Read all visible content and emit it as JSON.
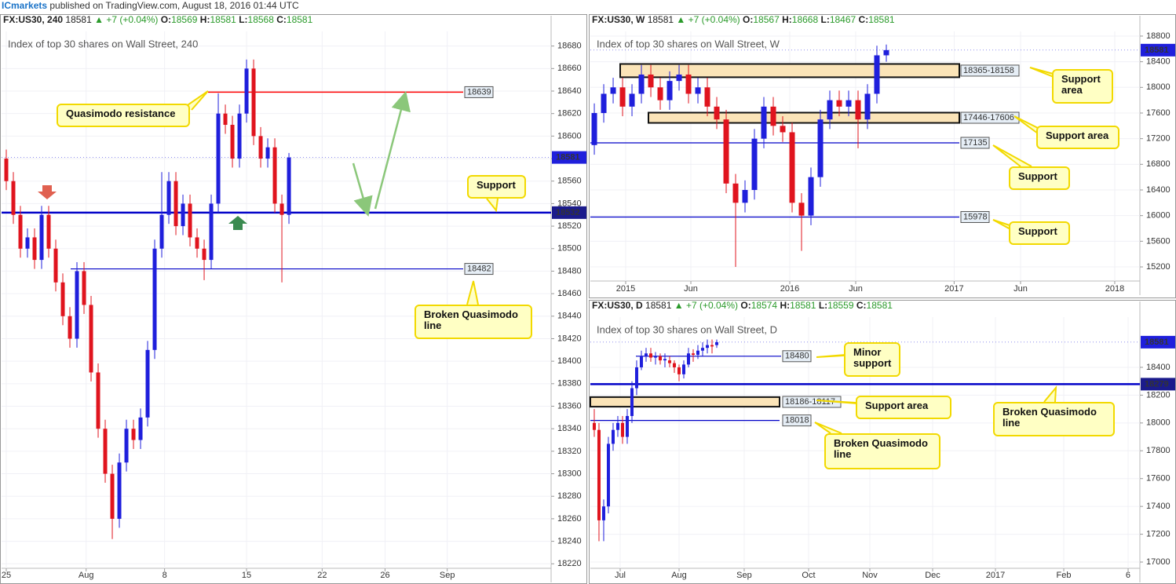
{
  "header": {
    "brand": "ICmarkets",
    "text": " published on TradingView.com, August 18, 2016 01:44 UTC"
  },
  "chart_data": [
    {
      "type": "candlestick",
      "symbol": "FX:US30, 240",
      "last": 18581,
      "change": "+7 (+0.04%)",
      "ohlc": [
        {
          "label": "O:",
          "value": 18569
        },
        {
          "label": "H:",
          "value": 18581
        },
        {
          "label": "L:",
          "value": 18568
        },
        {
          "label": "C:",
          "value": 18581
        }
      ],
      "title": "Index of top 30 shares on Wall Street, 240",
      "xlim": [
        -0.667,
        77.1
      ],
      "ylim": [
        18216,
        18693
      ],
      "xticks": [
        {
          "value": 0,
          "label": "25"
        },
        {
          "value": 11.3,
          "label": "Aug"
        },
        {
          "value": 22.4,
          "label": "8"
        },
        {
          "value": 34,
          "label": "15"
        },
        {
          "value": 44.7,
          "label": "22"
        },
        {
          "value": 53.6,
          "label": "26"
        },
        {
          "value": 62.4,
          "label": "Sep"
        }
      ],
      "yticks": [
        18220,
        18240,
        18260,
        18280,
        18300,
        18320,
        18340,
        18360,
        18380,
        18400,
        18420,
        18440,
        18460,
        18480,
        18500,
        18520,
        18540,
        18560,
        18580,
        18600,
        18620,
        18640,
        18660,
        18680
      ],
      "up_color": "#1f1fdc",
      "down_color": "#e0141e",
      "open": [
        18580,
        18560,
        18530,
        18500,
        18510,
        18490,
        18530,
        18500,
        18470,
        18440,
        18420,
        18480,
        18450,
        18390,
        18340,
        18300,
        18260,
        18310,
        18340,
        18330,
        18350,
        18410,
        18500,
        18530,
        18560,
        18520,
        18540,
        18510,
        18500,
        18490,
        18540,
        18620,
        18610,
        18580,
        18620,
        18660,
        18600,
        18580,
        18590,
        18540,
        18530
      ],
      "high": [
        18588,
        18568,
        18538,
        18518,
        18518,
        18538,
        18538,
        18508,
        18478,
        18448,
        18488,
        18488,
        18458,
        18398,
        18348,
        18308,
        18318,
        18348,
        18348,
        18358,
        18418,
        18508,
        18568,
        18568,
        18568,
        18548,
        18548,
        18518,
        18508,
        18548,
        18638,
        18628,
        18618,
        18628,
        18668,
        18668,
        18608,
        18598,
        18598,
        18548,
        18585
      ],
      "low": [
        18552,
        18522,
        18492,
        18492,
        18482,
        18482,
        18492,
        18462,
        18432,
        18412,
        18412,
        18442,
        18382,
        18332,
        18292,
        18242,
        18252,
        18302,
        18322,
        18322,
        18342,
        18402,
        18492,
        18522,
        18512,
        18512,
        18502,
        18492,
        18472,
        18482,
        18532,
        18602,
        18572,
        18572,
        18612,
        18592,
        18572,
        18572,
        18532,
        18470,
        18522
      ],
      "close": [
        18560,
        18530,
        18500,
        18510,
        18490,
        18530,
        18500,
        18470,
        18440,
        18420,
        18480,
        18450,
        18390,
        18340,
        18300,
        18260,
        18310,
        18340,
        18330,
        18350,
        18410,
        18500,
        18530,
        18560,
        18520,
        18540,
        18510,
        18500,
        18490,
        18540,
        18620,
        18610,
        18580,
        18620,
        18660,
        18600,
        18580,
        18590,
        18540,
        18530,
        18581
      ],
      "levels": [
        {
          "value": 18639,
          "color": "#ff0000"
        },
        {
          "value": 18532,
          "color": "#0000c8"
        },
        {
          "value": 18482,
          "color": "#0000c8"
        }
      ],
      "zones": [],
      "annotations": [
        "Quasimodo resistance",
        "Support",
        "Broken Quasimodo line"
      ]
    },
    {
      "type": "candlestick",
      "symbol": "FX:US30, W",
      "last": 18581,
      "change": "+7 (+0.04%)",
      "ohlc": [
        {
          "label": "O:",
          "value": 18567
        },
        {
          "label": "H:",
          "value": 18668
        },
        {
          "label": "L:",
          "value": 18467
        },
        {
          "label": "C:",
          "value": 18581
        }
      ],
      "title": "Index of top 30 shares on Wall Street, W",
      "xlim": [
        -0.42,
        57.92
      ],
      "ylim": [
        14980,
        18873
      ],
      "xticks": [
        {
          "value": 3.33,
          "label": "2015"
        },
        {
          "value": 10.25,
          "label": "Jun"
        },
        {
          "value": 20.75,
          "label": "2016"
        },
        {
          "value": 27.75,
          "label": "Jun"
        },
        {
          "value": 38.2,
          "label": "2017"
        },
        {
          "value": 45.25,
          "label": "Jun"
        },
        {
          "value": 55.25,
          "label": "2018"
        }
      ],
      "yticks": [
        15200,
        15600,
        16000,
        16400,
        16800,
        17200,
        17600,
        18000,
        18400,
        18800
      ],
      "up_color": "#1f1fdc",
      "down_color": "#e0141e",
      "open": [
        17100,
        17600,
        17900,
        18000,
        17700,
        17900,
        18200,
        18000,
        17800,
        18100,
        18200,
        17900,
        18000,
        17700,
        17500,
        16500,
        16200,
        16400,
        17200,
        17700,
        17400,
        17300,
        16200,
        16000,
        16600,
        17500,
        17800,
        17700,
        17800,
        17500,
        17900,
        18500
      ],
      "high": [
        17750,
        18050,
        18150,
        18150,
        18050,
        18350,
        18350,
        18150,
        18250,
        18350,
        18350,
        18150,
        18150,
        17850,
        17650,
        16650,
        16550,
        17350,
        17850,
        17850,
        17550,
        17450,
        16350,
        16750,
        17650,
        17950,
        17950,
        17950,
        17950,
        18050,
        18650,
        18668
      ],
      "low": [
        16950,
        17450,
        17750,
        17550,
        17550,
        17750,
        17850,
        17650,
        17650,
        17950,
        17750,
        17750,
        17550,
        17350,
        16350,
        15200,
        16050,
        16250,
        17050,
        17250,
        17150,
        16050,
        15450,
        15850,
        16450,
        17350,
        17550,
        17550,
        17050,
        17350,
        17750,
        18400
      ],
      "close": [
        17600,
        17900,
        18000,
        17700,
        17900,
        18200,
        18000,
        17800,
        18100,
        18200,
        17900,
        18000,
        17700,
        17500,
        16500,
        16200,
        16400,
        17200,
        17700,
        17400,
        17300,
        16200,
        16000,
        16600,
        17500,
        17800,
        17700,
        17800,
        17500,
        17900,
        18500,
        18581
      ],
      "levels": [
        {
          "value": 17135,
          "color": "#0000c8"
        },
        {
          "value": 15978,
          "color": "#0000c8"
        }
      ],
      "zones": [
        {
          "top": 18365,
          "bottom": 18158,
          "label": "18365-18158"
        },
        {
          "top": 17606,
          "bottom": 17446,
          "label": "17446-17606"
        }
      ],
      "annotations": [
        "Support area",
        "Support area",
        "Support",
        "Support"
      ]
    },
    {
      "type": "candlestick",
      "symbol": "FX:US30, D",
      "last": 18581,
      "change": "+7 (+0.04%)",
      "ohlc": [
        {
          "label": "O:",
          "value": 18574
        },
        {
          "label": "H:",
          "value": 18581
        },
        {
          "label": "L:",
          "value": 18559
        },
        {
          "label": "C:",
          "value": 18581
        }
      ],
      "title": "Index of top 30 shares on Wall Street, D",
      "xlim": [
        -0.83,
        115.83
      ],
      "ylim": [
        16955,
        18761
      ],
      "xticks": [
        {
          "value": 5.5,
          "label": "Jul"
        },
        {
          "value": 18,
          "label": "Aug"
        },
        {
          "value": 31.83,
          "label": "Sep"
        },
        {
          "value": 45.5,
          "label": "Oct"
        },
        {
          "value": 58.5,
          "label": "Nov"
        },
        {
          "value": 71.83,
          "label": "Dec"
        },
        {
          "value": 85.17,
          "label": "2017"
        },
        {
          "value": 99.67,
          "label": "Feb"
        },
        {
          "value": 113.33,
          "label": "6"
        }
      ],
      "yticks": [
        17000,
        17200,
        17400,
        17600,
        17800,
        18000,
        18200,
        18400
      ],
      "up_color": "#1f1fdc",
      "down_color": "#e0141e",
      "open": [
        18000,
        17950,
        17300,
        17400,
        17850,
        17950,
        18000,
        17900,
        18050,
        18250,
        18400,
        18480,
        18500,
        18470,
        18480,
        18450,
        18450,
        18430,
        18400,
        18350,
        18420,
        18500,
        18490,
        18520,
        18540,
        18560,
        18560
      ],
      "high": [
        18100,
        18000,
        17450,
        17900,
        18000,
        18050,
        18050,
        18100,
        18300,
        18450,
        18520,
        18540,
        18540,
        18510,
        18500,
        18500,
        18480,
        18450,
        18420,
        18450,
        18540,
        18530,
        18560,
        18580,
        18600,
        18600,
        18600
      ],
      "low": [
        17900,
        17150,
        17150,
        17350,
        17800,
        17900,
        17850,
        17850,
        18000,
        18200,
        18380,
        18440,
        18440,
        18420,
        18420,
        18400,
        18400,
        18360,
        18300,
        18320,
        18400,
        18440,
        18460,
        18480,
        18500,
        18500,
        18540
      ],
      "close": [
        17950,
        17300,
        17400,
        17850,
        17950,
        18000,
        17900,
        18050,
        18250,
        18400,
        18480,
        18500,
        18470,
        18480,
        18450,
        18460,
        18430,
        18400,
        18350,
        18420,
        18500,
        18490,
        18520,
        18540,
        18560,
        18550,
        18581
      ],
      "levels": [
        {
          "value": 18480,
          "color": "#0000c8"
        },
        {
          "value": 18279,
          "color": "#0000c8"
        },
        {
          "value": 18018,
          "color": "#0000c8"
        }
      ],
      "zones": [
        {
          "top": 18186,
          "bottom": 18117,
          "label": "18186-18117"
        }
      ],
      "annotations": [
        "Minor support",
        "Support area",
        "Broken Quasimodo line",
        "Broken Quasimodo line"
      ]
    }
  ]
}
